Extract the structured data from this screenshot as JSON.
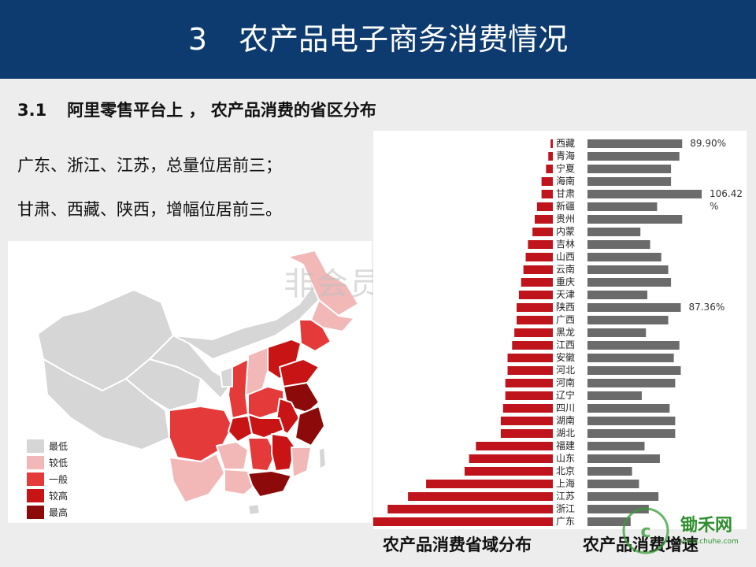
{
  "header": {
    "section_num": "3",
    "title": "农产品电子商务消费情况"
  },
  "subtitle": {
    "num": "3.1",
    "text": "阿里零售平台上 ， 农产品消费的省区分布"
  },
  "summary": {
    "line1": "广东、浙江、江苏，总量位居前三；",
    "line2": "甘肃、西藏、陕西，增幅位居前三。"
  },
  "legend": [
    {
      "label": "最低",
      "color": "#d6d6d6"
    },
    {
      "label": "较低",
      "color": "#f2b8b8"
    },
    {
      "label": "一般",
      "color": "#e43a3a"
    },
    {
      "label": "较高",
      "color": "#c81414"
    },
    {
      "label": "最高",
      "color": "#8c0a0a"
    }
  ],
  "watermark": "非会员水印",
  "captions": {
    "left": "农产品消费省域分布",
    "right": "农产品消费增速"
  },
  "chart_data": {
    "type": "bar",
    "categories": [
      "西藏",
      "青海",
      "宁夏",
      "海南",
      "甘肃",
      "新疆",
      "贵州",
      "内蒙",
      "吉林",
      "山西",
      "云南",
      "重庆",
      "天津",
      "陕西",
      "广西",
      "黑龙",
      "江西",
      "安徽",
      "河北",
      "河南",
      "辽宁",
      "四川",
      "湖南",
      "湖北",
      "福建",
      "山东",
      "北京",
      "上海",
      "江苏",
      "浙江",
      "广东"
    ],
    "series": [
      {
        "color": "#c0141c",
        "values": [
          1,
          2,
          3,
          5,
          5,
          7,
          8,
          9,
          11,
          12,
          13,
          14,
          15,
          16,
          16,
          17,
          18,
          20,
          20,
          21,
          21,
          22,
          23,
          23,
          34,
          37,
          39,
          56,
          64,
          73,
          87
        ]
      },
      {
        "color": "#6b6b6b",
        "values": [
          68,
          66,
          60,
          60,
          82,
          50,
          68,
          38,
          45,
          53,
          58,
          60,
          43,
          67,
          58,
          42,
          66,
          62,
          67,
          63,
          39,
          59,
          63,
          63,
          41,
          52,
          32,
          37,
          51,
          44,
          31
        ]
      }
    ],
    "annotations": [
      {
        "category": "西藏",
        "text": "89.90%"
      },
      {
        "category": "甘肃",
        "text": "106.42 %"
      },
      {
        "category": "陕西",
        "text": "87.36%"
      }
    ]
  },
  "logo": {
    "text": "锄禾网",
    "sub": "www.chuhe.com"
  }
}
